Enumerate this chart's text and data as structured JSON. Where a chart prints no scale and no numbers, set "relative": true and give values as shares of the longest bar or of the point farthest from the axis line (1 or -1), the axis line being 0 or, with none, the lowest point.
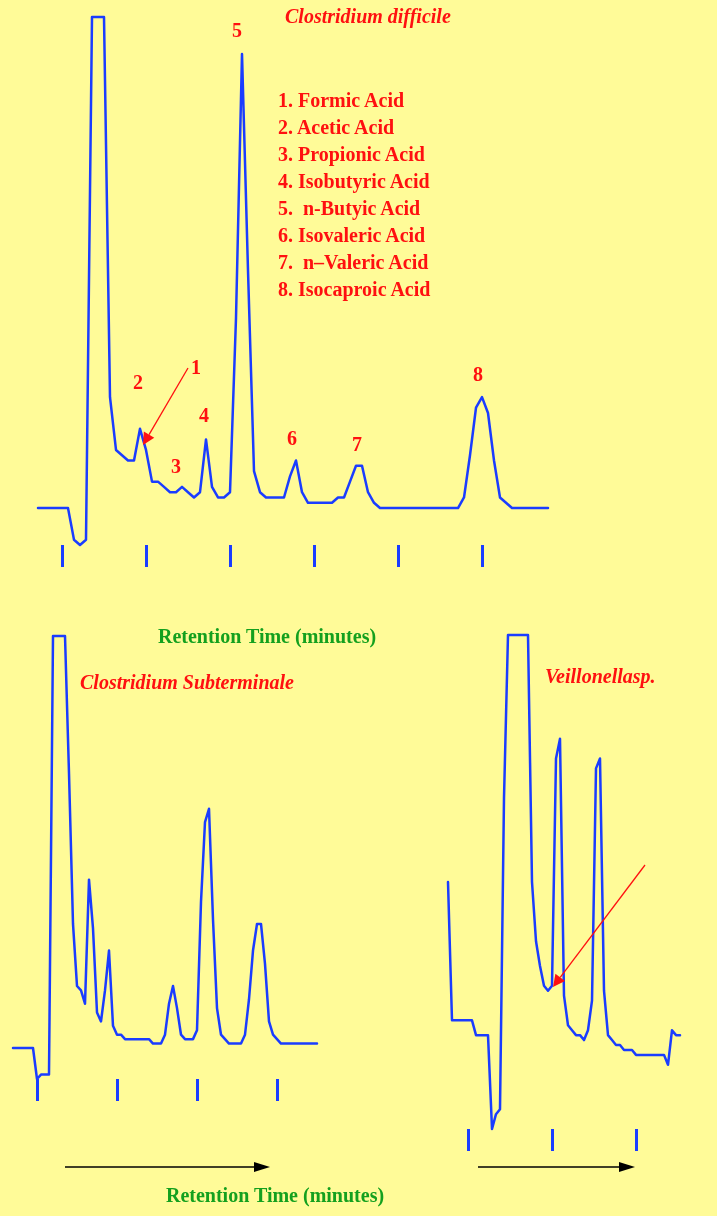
{
  "chart_data": [
    {
      "type": "line",
      "title": "Clostridium difficile",
      "xlabel": "Retention Time (minutes)",
      "relative": true,
      "annotations": [
        "1. Formic Acid",
        "2. Acetic Acid",
        "3. Propionic Acid",
        "4. Isobutyric Acid",
        "5.  n-Butyic Acid",
        "6. Isovaleric Acid",
        "7.  n–Valeric Acid",
        "8. Isocaproic Acid",
        "1",
        "2",
        "3",
        "4",
        "5",
        "6",
        "7",
        "8"
      ],
      "categories": [
        null,
        null,
        null,
        null,
        null,
        null,
        null,
        null,
        null,
        null,
        null,
        null,
        null,
        null,
        null,
        null,
        null,
        null,
        null,
        null,
        null,
        null,
        null,
        null,
        null,
        null,
        null,
        null,
        null,
        null,
        null,
        null,
        null,
        null,
        null,
        null,
        null,
        null,
        null,
        null,
        null,
        null,
        null,
        null,
        null,
        null,
        null,
        null,
        null,
        null,
        null,
        null,
        null,
        null,
        null,
        null,
        null,
        null,
        null,
        null,
        null,
        null,
        null,
        null,
        null,
        null,
        null,
        null,
        null,
        null,
        null,
        null,
        null,
        null,
        null,
        null,
        null,
        null,
        null,
        null,
        null,
        null,
        null,
        null,
        null,
        null
      ],
      "series": [
        {
          "color": "#1a3cff",
          "values": [
            0.07,
            0.07,
            0.07,
            0.07,
            0.07,
            0.07,
            0.01,
            0,
            0.01,
            1,
            1,
            1,
            0.28,
            0.18,
            0.17,
            0.16,
            0.16,
            0.22,
            0.18,
            0.12,
            0.12,
            0.11,
            0.1,
            0.1,
            0.11,
            0.1,
            0.09,
            0.1,
            0.2,
            0.11,
            0.09,
            0.09,
            0.1,
            0.43,
            0.93,
            0.52,
            0.14,
            0.1,
            0.09,
            0.09,
            0.09,
            0.09,
            0.13,
            0.16,
            0.1,
            0.08,
            0.08,
            0.08,
            0.08,
            0.08,
            0.09,
            0.09,
            0.12,
            0.15,
            0.15,
            0.1,
            0.08,
            0.07,
            0.07,
            0.07,
            0.07,
            0.07,
            0.07,
            0.07,
            0.07,
            0.07,
            0.07,
            0.07,
            0.07,
            0.07,
            0.07,
            0.09,
            0.17,
            0.26,
            0.28,
            0.25,
            0.16,
            0.09,
            0.08,
            0.07,
            0.07,
            0.07,
            0.07,
            0.07,
            0.07,
            0.07
          ]
        }
      ]
    },
    {
      "type": "line",
      "title": "Clostridium Subterminale",
      "xlabel": "Retention Time (minutes)",
      "relative": true,
      "categories": [
        null,
        null,
        null,
        null,
        null,
        null,
        null,
        null,
        null,
        null,
        null,
        null,
        null,
        null,
        null,
        null,
        null,
        null,
        null,
        null,
        null,
        null,
        null,
        null,
        null,
        null,
        null,
        null,
        null,
        null,
        null,
        null,
        null,
        null,
        null,
        null,
        null,
        null,
        null,
        null,
        null,
        null,
        null,
        null,
        null,
        null,
        null,
        null,
        null,
        null,
        null,
        null,
        null,
        null,
        null,
        null,
        null,
        null,
        null,
        null,
        null,
        null,
        null,
        null,
        null,
        null,
        null,
        null,
        null,
        null,
        null,
        null,
        null,
        null,
        null,
        null,
        null
      ],
      "series": [
        {
          "color": "#1a3cff",
          "values": [
            0.07,
            0.07,
            0.07,
            0.07,
            0.07,
            0.07,
            0,
            0.01,
            0.01,
            0.01,
            1,
            1,
            1,
            1,
            0.69,
            0.35,
            0.21,
            0.2,
            0.17,
            0.45,
            0.34,
            0.15,
            0.13,
            0.2,
            0.29,
            0.12,
            0.1,
            0.1,
            0.09,
            0.09,
            0.09,
            0.09,
            0.09,
            0.09,
            0.09,
            0.08,
            0.08,
            0.08,
            0.1,
            0.17,
            0.21,
            0.16,
            0.1,
            0.09,
            0.09,
            0.09,
            0.11,
            0.4,
            0.58,
            0.61,
            0.36,
            0.16,
            0.1,
            0.09,
            0.08,
            0.08,
            0.08,
            0.08,
            0.1,
            0.18,
            0.29,
            0.35,
            0.35,
            0.26,
            0.13,
            0.1,
            0.09,
            0.08,
            0.08,
            0.08,
            0.08,
            0.08,
            0.08,
            0.08,
            0.08,
            0.08,
            0.08
          ]
        }
      ]
    },
    {
      "type": "line",
      "title": "Veillonellasp.",
      "relative": true,
      "categories": [
        null,
        null,
        null,
        null,
        null,
        null,
        null,
        null,
        null,
        null,
        null,
        null,
        null,
        null,
        null,
        null,
        null,
        null,
        null,
        null,
        null,
        null,
        null,
        null,
        null,
        null,
        null,
        null,
        null,
        null,
        null,
        null,
        null,
        null,
        null,
        null,
        null,
        null,
        null,
        null,
        null,
        null,
        null,
        null,
        null,
        null,
        null,
        null,
        null,
        null,
        null,
        null,
        null,
        null,
        null,
        null,
        null,
        null,
        null
      ],
      "series": [
        {
          "color": "#1a3cff",
          "values": [
            0.5,
            0.22,
            0.22,
            0.22,
            0.22,
            0.22,
            0.22,
            0.19,
            0.19,
            0.19,
            0.19,
            0,
            0.03,
            0.04,
            0.67,
            1,
            1,
            1,
            1,
            1,
            1,
            0.5,
            0.38,
            0.33,
            0.29,
            0.28,
            0.29,
            0.75,
            0.79,
            0.27,
            0.21,
            0.2,
            0.19,
            0.19,
            0.18,
            0.2,
            0.26,
            0.73,
            0.75,
            0.28,
            0.19,
            0.18,
            0.17,
            0.17,
            0.16,
            0.16,
            0.16,
            0.15,
            0.15,
            0.15,
            0.15,
            0.15,
            0.15,
            0.15,
            0.15,
            0.13,
            0.2,
            0.19,
            0.19
          ]
        }
      ]
    }
  ]
}
